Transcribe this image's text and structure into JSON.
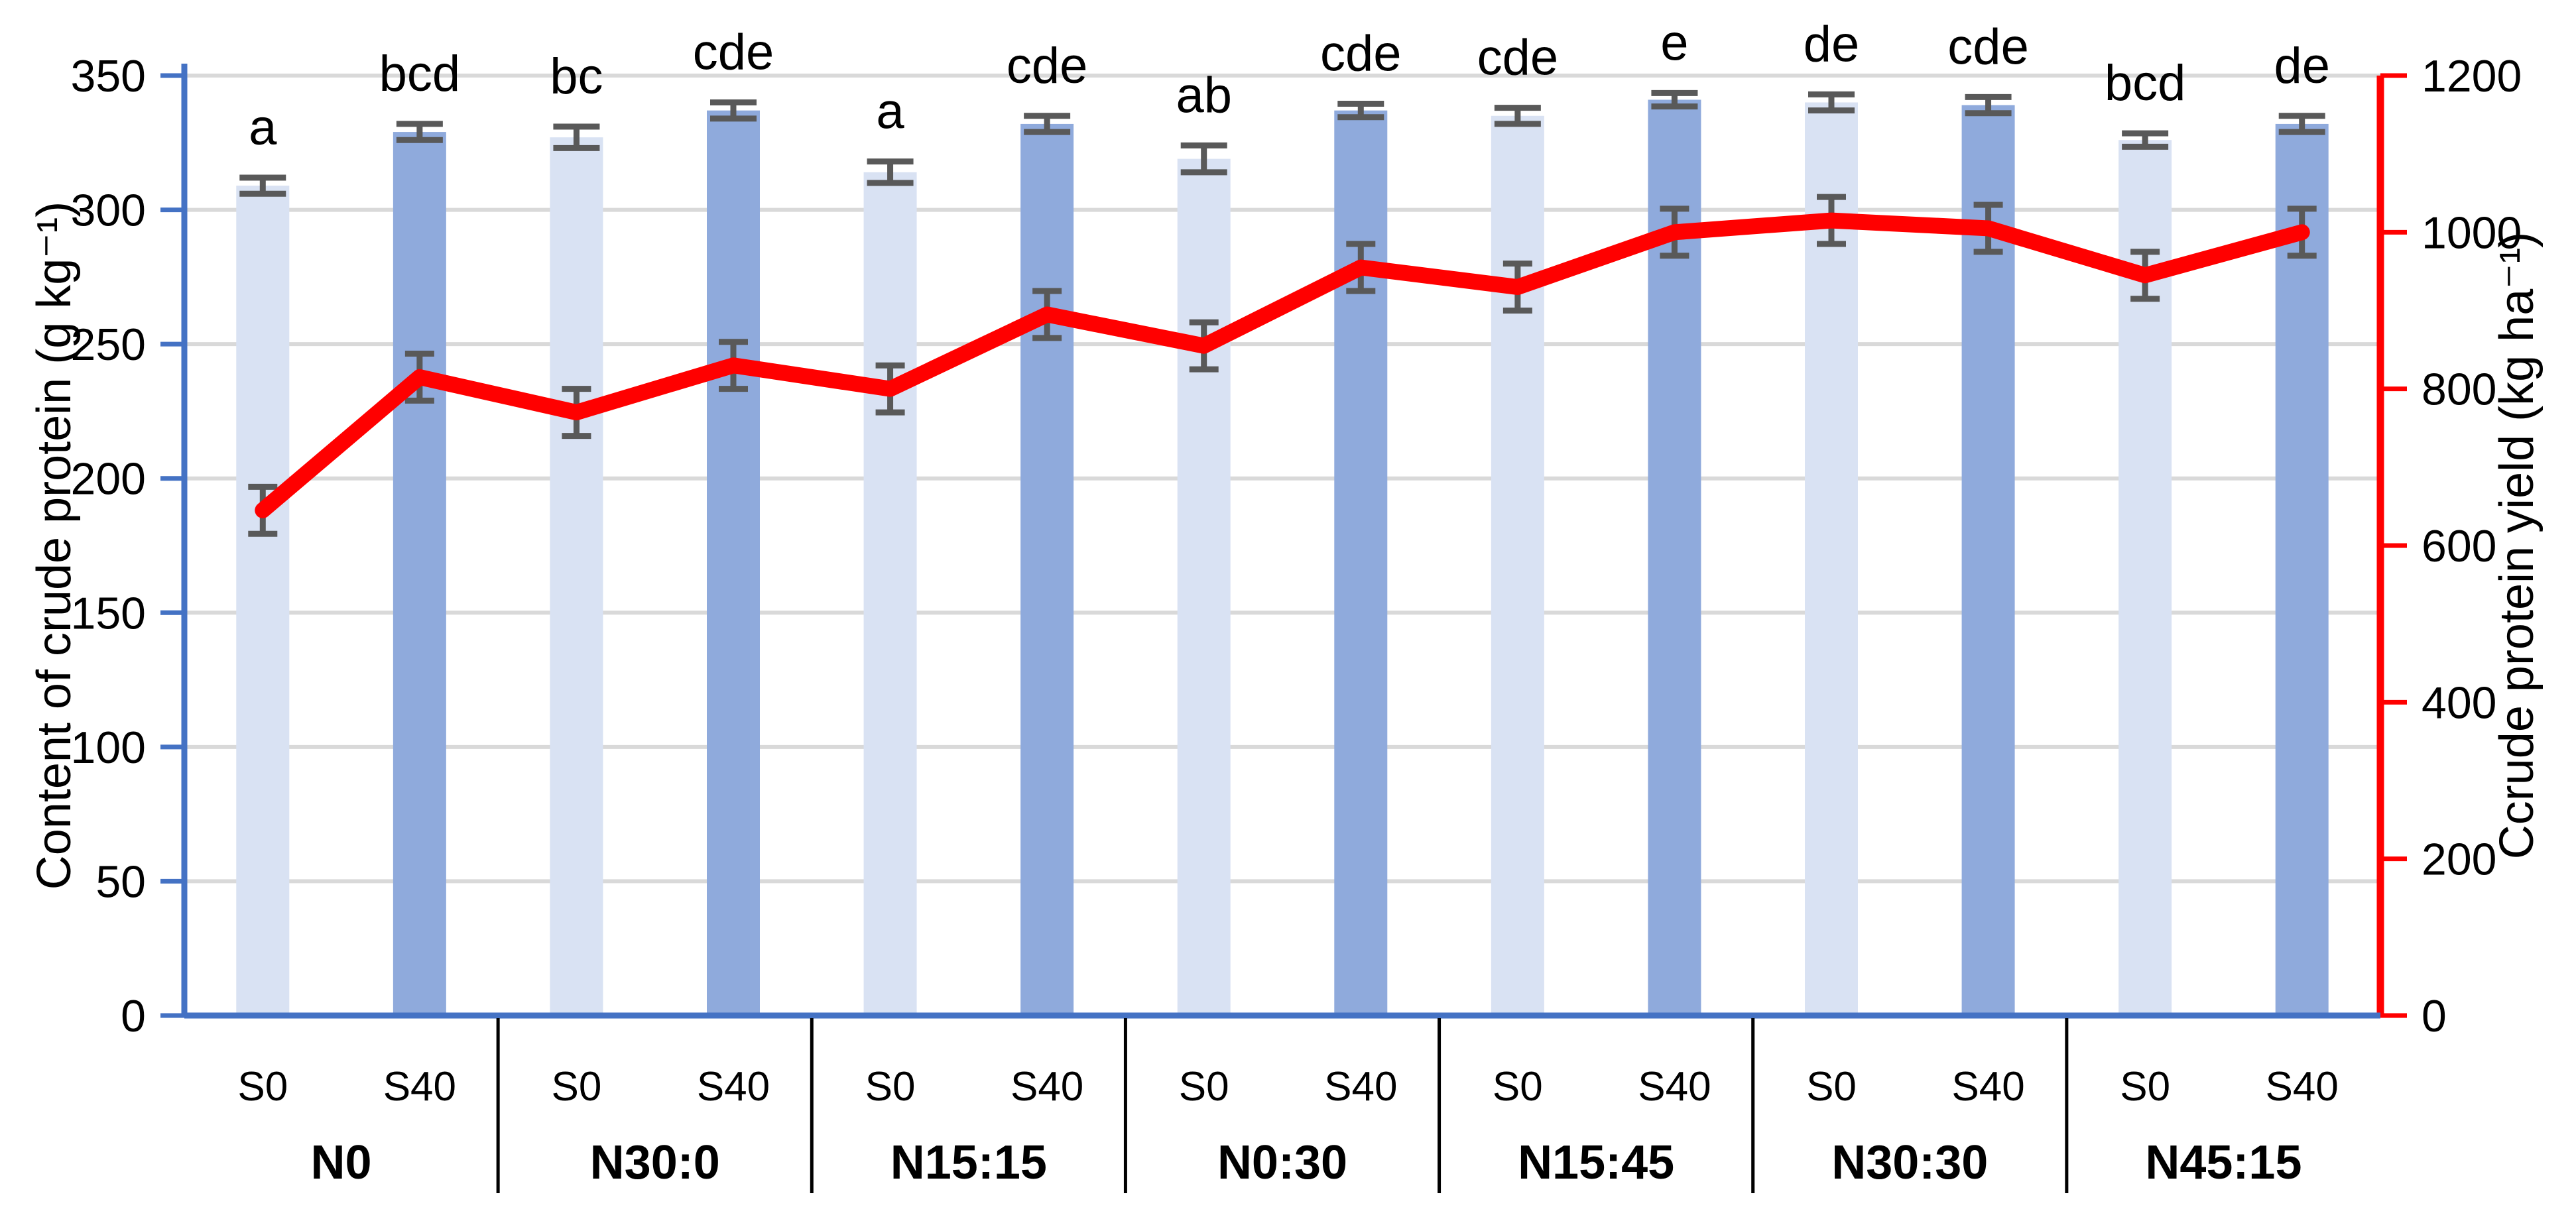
{
  "figure": {
    "background": "#ffffff"
  },
  "chart_data": {
    "type": "bar",
    "subtype": "grouped-bar-with-line-overlay",
    "title": "",
    "groups": [
      "N0",
      "N30:0",
      "N15:15",
      "N0:30",
      "N15:45",
      "N30:30",
      "N45:15"
    ],
    "sub_categories": [
      "S0",
      "S40"
    ],
    "left_axis": {
      "title": "Content of crude protein (g kg⁻¹)",
      "min": 0,
      "max": 350,
      "step": 50,
      "ticks": [
        "0",
        "50",
        "100",
        "150",
        "200",
        "250",
        "300",
        "350"
      ]
    },
    "right_axis": {
      "title": "Ccrude protein yield (kg ha⁻¹)",
      "min": 0,
      "max": 1200,
      "step": 200,
      "ticks": [
        "0",
        "200",
        "400",
        "600",
        "800",
        "1000",
        "1200"
      ]
    },
    "bar_series": {
      "name": "Content of crude protein",
      "unit": "g kg⁻¹",
      "values": [
        [
          309,
          329
        ],
        [
          327,
          337
        ],
        [
          314,
          332
        ],
        [
          319,
          337
        ],
        [
          335,
          341
        ],
        [
          340,
          339
        ],
        [
          326,
          332
        ]
      ],
      "errors": [
        [
          3,
          3
        ],
        [
          4,
          3
        ],
        [
          4,
          3
        ],
        [
          5,
          2.5
        ],
        [
          3,
          2.5
        ],
        [
          3,
          3
        ],
        [
          2.5,
          3
        ]
      ],
      "significance_letters": [
        [
          "a",
          "bcd"
        ],
        [
          "bc",
          "cde"
        ],
        [
          "a",
          "cde"
        ],
        [
          "ab",
          "cde"
        ],
        [
          "cde",
          "e"
        ],
        [
          "de",
          "cde"
        ],
        [
          "bcd",
          "de"
        ]
      ]
    },
    "line_series": {
      "name": "Crude protein yield",
      "unit": "kg ha⁻¹",
      "values": [
        645,
        815,
        770,
        830,
        800,
        895,
        855,
        955,
        930,
        1000,
        1015,
        1005,
        945,
        1000
      ],
      "errors": [
        30,
        30,
        30,
        30,
        30,
        30,
        30,
        30,
        30,
        30,
        30,
        30,
        30,
        30
      ]
    },
    "colors": {
      "bar_s0": "#d9e2f3",
      "bar_s40": "#8faadc",
      "line": "#ff0000",
      "error_bar": "#595959",
      "gridline": "#d9d9d9",
      "left_axis": "#4472c4",
      "right_axis": "#ff0000",
      "text": "#000000"
    },
    "legend_position": "none",
    "grid": "horizontal"
  }
}
